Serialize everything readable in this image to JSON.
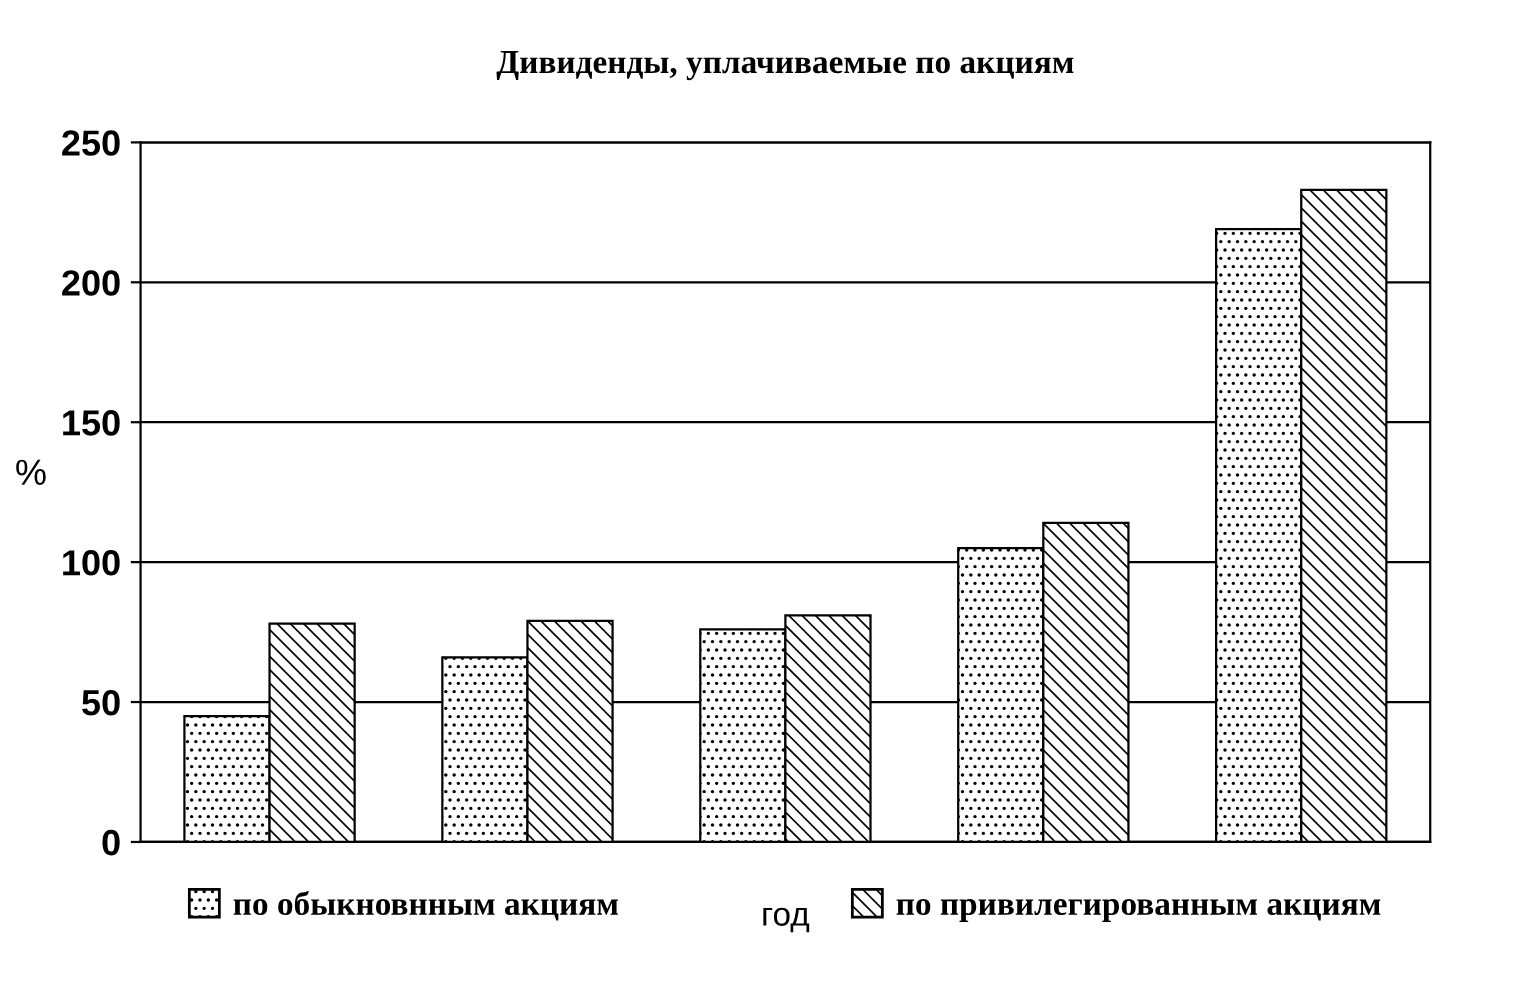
{
  "chart_data": {
    "type": "bar",
    "title": "Дивиденды, уплачиваемые по акциям",
    "xlabel": "год",
    "ylabel": "%",
    "categories": [
      null,
      null,
      null,
      null,
      null
    ],
    "series": [
      {
        "name": "по обыкновнным акциям",
        "color": "#000000",
        "values": [
          45,
          66,
          76,
          105,
          219
        ]
      },
      {
        "name": "по привилегированным акциям",
        "color": "#000000",
        "values": [
          78,
          79,
          81,
          114,
          233
        ]
      }
    ],
    "ylim": [
      0,
      250
    ],
    "yticks": [
      0,
      50,
      100,
      150,
      200,
      250
    ],
    "grid": "y",
    "legend": "bottom"
  }
}
